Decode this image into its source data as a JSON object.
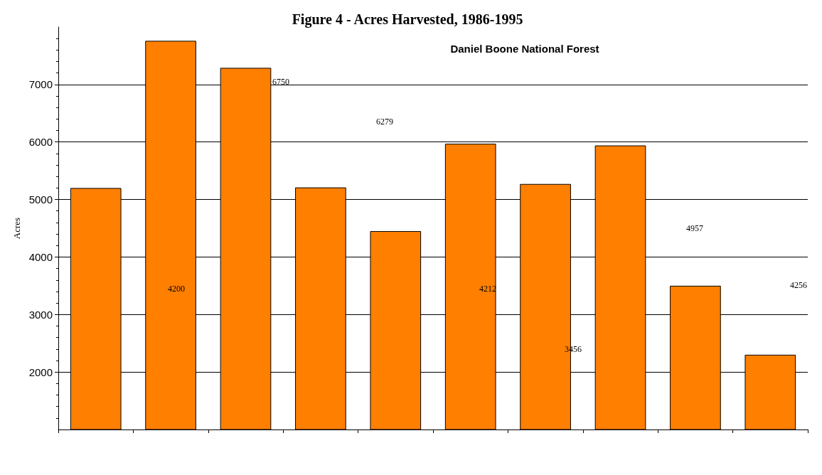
{
  "chart_data": {
    "type": "bar",
    "title": "Figure 4 - Acres Harvested, 1986-1995",
    "subtitle": "Daniel Boone National Forest",
    "ylabel": "Acres",
    "categories": [
      null,
      null,
      null,
      null,
      null,
      null,
      null,
      null,
      null,
      null
    ],
    "values": [
      5200,
      7760,
      7290,
      5210,
      4450,
      5970,
      5270,
      5940,
      3500,
      2300
    ],
    "color": "#ff7f00",
    "ylim": [
      1000,
      8000
    ],
    "yticks": [
      2000,
      3000,
      4000,
      5000,
      6000,
      7000
    ],
    "grid": "y",
    "annotations": [
      "4200",
      "6750",
      "6279",
      "4212",
      "3456",
      "4957",
      "4256"
    ]
  }
}
